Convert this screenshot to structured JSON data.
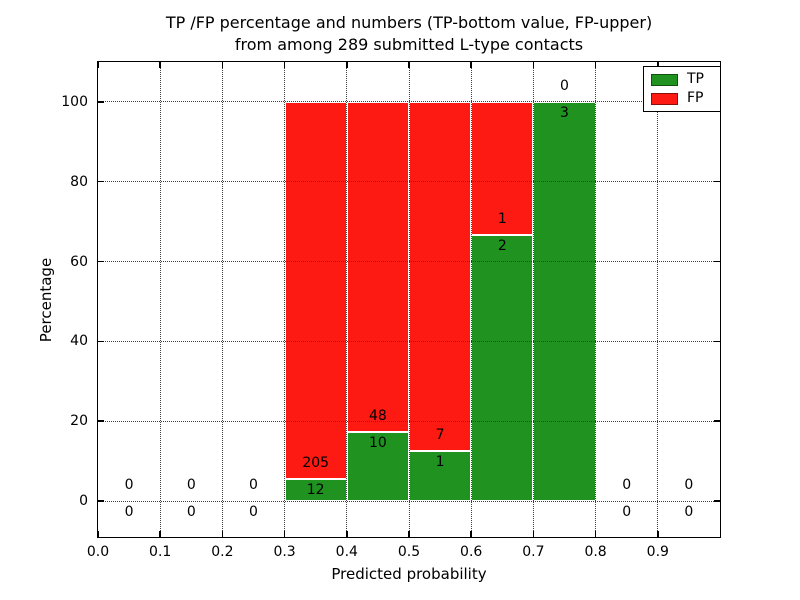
{
  "chart_data": {
    "type": "bar",
    "stacked": true,
    "units": "percent",
    "title": "TP /FP percentage and numbers (TP-bottom value, FP-upper)\nfrom among 289 submitted L-type contacts",
    "xlabel": "Predicted probability",
    "ylabel": "Percentage",
    "xlim": [
      0.0,
      1.0
    ],
    "ylim": [
      -9,
      110
    ],
    "x_ticks": [
      0.0,
      0.1,
      0.2,
      0.3,
      0.4,
      0.5,
      0.6,
      0.7,
      0.8,
      0.9
    ],
    "x_tick_labels": [
      "0.0",
      "0.1",
      "0.2",
      "0.3",
      "0.4",
      "0.5",
      "0.6",
      "0.7",
      "0.8",
      "0.9"
    ],
    "y_ticks": [
      0,
      20,
      40,
      60,
      80,
      100
    ],
    "y_tick_labels": [
      "0",
      "20",
      "40",
      "60",
      "80",
      "100"
    ],
    "grid": "dotted",
    "grid_on_top": true,
    "bar_width": 0.1,
    "total_submitted": 289,
    "legend": {
      "location": "upper right",
      "entries": [
        {
          "label": "TP",
          "color": "#1f9220"
        },
        {
          "label": "FP",
          "color": "#fc1a13"
        }
      ]
    },
    "bins": [
      {
        "x_left": 0.0,
        "tp_count": 0,
        "fp_count": 0,
        "tp_pct": 0,
        "fp_pct": 0
      },
      {
        "x_left": 0.1,
        "tp_count": 0,
        "fp_count": 0,
        "tp_pct": 0,
        "fp_pct": 0
      },
      {
        "x_left": 0.2,
        "tp_count": 0,
        "fp_count": 0,
        "tp_pct": 0,
        "fp_pct": 0
      },
      {
        "x_left": 0.3,
        "tp_count": 12,
        "fp_count": 205,
        "tp_pct": 5.53,
        "fp_pct": 94.47
      },
      {
        "x_left": 0.4,
        "tp_count": 10,
        "fp_count": 48,
        "tp_pct": 17.24,
        "fp_pct": 82.76
      },
      {
        "x_left": 0.5,
        "tp_count": 1,
        "fp_count": 7,
        "tp_pct": 12.5,
        "fp_pct": 87.5
      },
      {
        "x_left": 0.6,
        "tp_count": 2,
        "fp_count": 1,
        "tp_pct": 66.67,
        "fp_pct": 33.33
      },
      {
        "x_left": 0.7,
        "tp_count": 3,
        "fp_count": 0,
        "tp_pct": 100,
        "fp_pct": 0
      },
      {
        "x_left": 0.8,
        "tp_count": 0,
        "fp_count": 0,
        "tp_pct": 0,
        "fp_pct": 0
      },
      {
        "x_left": 0.9,
        "tp_count": 0,
        "fp_count": 0,
        "tp_pct": 0,
        "fp_pct": 0
      }
    ]
  },
  "colors": {
    "tp_green": "#1f9220",
    "fp_red": "#fc1a13",
    "bar_edge": "#ffffff",
    "grid": "#3c3c3c",
    "spine": "#000000",
    "background": "#ffffff"
  }
}
